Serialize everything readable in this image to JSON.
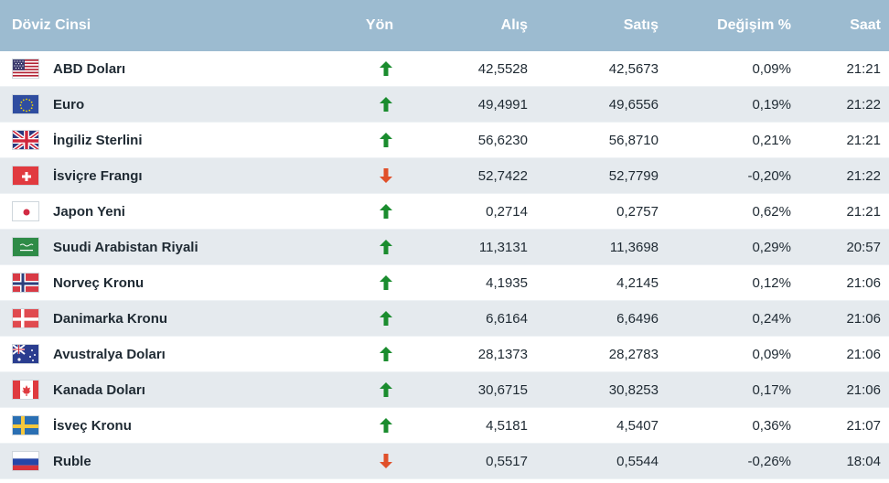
{
  "header": {
    "name": "Döviz Cinsi",
    "direction": "Yön",
    "buy": "Alış",
    "sell": "Satış",
    "change": "Değişim %",
    "time": "Saat"
  },
  "colors": {
    "header_bg": "#9cbbd0",
    "up": "#1a8c2e",
    "down": "#e0502a"
  },
  "rows": [
    {
      "flag": "us-flag-icon",
      "name": "ABD Doları",
      "dir": "up",
      "buy": "42,5528",
      "sell": "42,5673",
      "change": "0,09%",
      "time": "21:21"
    },
    {
      "flag": "eu-flag-icon",
      "name": "Euro",
      "dir": "up",
      "buy": "49,4991",
      "sell": "49,6556",
      "change": "0,19%",
      "time": "21:22"
    },
    {
      "flag": "uk-flag-icon",
      "name": "İngiliz Sterlini",
      "dir": "up",
      "buy": "56,6230",
      "sell": "56,8710",
      "change": "0,21%",
      "time": "21:21"
    },
    {
      "flag": "ch-flag-icon",
      "name": "İsviçre Frangı",
      "dir": "down",
      "buy": "52,7422",
      "sell": "52,7799",
      "change": "-0,20%",
      "time": "21:22"
    },
    {
      "flag": "jp-flag-icon",
      "name": "Japon Yeni",
      "dir": "up",
      "buy": "0,2714",
      "sell": "0,2757",
      "change": "0,62%",
      "time": "21:21"
    },
    {
      "flag": "sa-flag-icon",
      "name": "Suudi Arabistan Riyali",
      "dir": "up",
      "buy": "11,3131",
      "sell": "11,3698",
      "change": "0,29%",
      "time": "20:57"
    },
    {
      "flag": "no-flag-icon",
      "name": "Norveç Kronu",
      "dir": "up",
      "buy": "4,1935",
      "sell": "4,2145",
      "change": "0,12%",
      "time": "21:06"
    },
    {
      "flag": "dk-flag-icon",
      "name": "Danimarka Kronu",
      "dir": "up",
      "buy": "6,6164",
      "sell": "6,6496",
      "change": "0,24%",
      "time": "21:06"
    },
    {
      "flag": "au-flag-icon",
      "name": "Avustralya Doları",
      "dir": "up",
      "buy": "28,1373",
      "sell": "28,2783",
      "change": "0,09%",
      "time": "21:06"
    },
    {
      "flag": "ca-flag-icon",
      "name": "Kanada Doları",
      "dir": "up",
      "buy": "30,6715",
      "sell": "30,8253",
      "change": "0,17%",
      "time": "21:06"
    },
    {
      "flag": "se-flag-icon",
      "name": "İsveç Kronu",
      "dir": "up",
      "buy": "4,5181",
      "sell": "4,5407",
      "change": "0,36%",
      "time": "21:07"
    },
    {
      "flag": "ru-flag-icon",
      "name": "Ruble",
      "dir": "down",
      "buy": "0,5517",
      "sell": "0,5544",
      "change": "-0,26%",
      "time": "18:04"
    }
  ]
}
